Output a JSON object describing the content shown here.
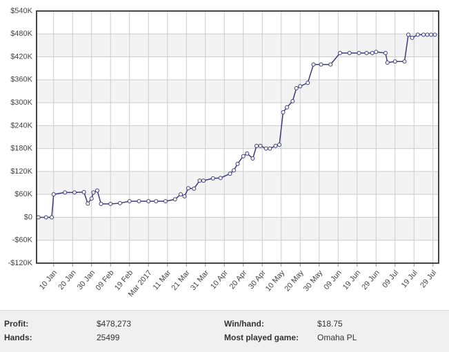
{
  "chart_data": {
    "type": "line",
    "x": [
      "2017-01-02",
      "2017-01-06",
      "2017-01-09",
      "2017-01-10",
      "2017-01-16",
      "2017-01-21",
      "2017-01-26",
      "2017-01-28",
      "2017-01-30",
      "2017-01-31",
      "2017-02-02",
      "2017-02-04",
      "2017-02-09",
      "2017-02-14",
      "2017-02-19",
      "2017-02-24",
      "2017-03-01",
      "2017-03-05",
      "2017-03-10",
      "2017-03-15",
      "2017-03-18",
      "2017-03-20",
      "2017-03-22",
      "2017-03-25",
      "2017-03-28",
      "2017-03-30",
      "2017-04-04",
      "2017-04-08",
      "2017-04-13",
      "2017-04-15",
      "2017-04-17",
      "2017-04-20",
      "2017-04-22",
      "2017-04-25",
      "2017-04-27",
      "2017-04-29",
      "2017-05-02",
      "2017-05-04",
      "2017-05-07",
      "2017-05-09",
      "2017-05-11",
      "2017-05-13",
      "2017-05-16",
      "2017-05-18",
      "2017-05-20",
      "2017-05-24",
      "2017-05-27",
      "2017-05-31",
      "2017-06-05",
      "2017-06-10",
      "2017-06-15",
      "2017-06-20",
      "2017-06-24",
      "2017-06-27",
      "2017-06-29",
      "2017-07-04",
      "2017-07-05",
      "2017-07-09",
      "2017-07-14",
      "2017-07-16",
      "2017-07-18",
      "2017-07-21",
      "2017-07-24",
      "2017-07-26",
      "2017-07-28",
      "2017-07-30"
    ],
    "values": [
      0,
      0,
      0,
      60000,
      65000,
      65000,
      66000,
      36000,
      49000,
      65000,
      70000,
      35000,
      35000,
      37000,
      42000,
      42000,
      42000,
      42000,
      42000,
      47000,
      60000,
      55000,
      76000,
      75000,
      96000,
      96000,
      102000,
      103000,
      114000,
      123000,
      140000,
      160000,
      167000,
      154000,
      187000,
      187000,
      180000,
      180000,
      187000,
      190000,
      275000,
      288000,
      304000,
      338000,
      343000,
      352000,
      400000,
      400000,
      400000,
      430000,
      430000,
      430000,
      430000,
      430000,
      433000,
      430000,
      405000,
      408000,
      408000,
      478000,
      470000,
      478000,
      478000,
      478000,
      478000,
      478000
    ],
    "color": "#3a3a7c",
    "xlim": [
      "2017-01-01",
      "2017-08-01"
    ],
    "xticks": [
      {
        "value": "2017-01-10",
        "label": "10 Jan"
      },
      {
        "value": "2017-01-20",
        "label": "20 Jan"
      },
      {
        "value": "2017-01-30",
        "label": "30 Jan"
      },
      {
        "value": "2017-02-09",
        "label": "09 Feb"
      },
      {
        "value": "2017-02-19",
        "label": "19 Feb"
      },
      {
        "value": "2017-03-01",
        "label": "Mar 2017"
      },
      {
        "value": "2017-03-11",
        "label": "11 Mar"
      },
      {
        "value": "2017-03-21",
        "label": "21 Mar"
      },
      {
        "value": "2017-03-31",
        "label": "31 Mar"
      },
      {
        "value": "2017-04-10",
        "label": "10 Apr"
      },
      {
        "value": "2017-04-20",
        "label": "20 Apr"
      },
      {
        "value": "2017-04-30",
        "label": "30 Apr"
      },
      {
        "value": "2017-05-10",
        "label": "10 May"
      },
      {
        "value": "2017-05-20",
        "label": "20 May"
      },
      {
        "value": "2017-05-30",
        "label": "30 May"
      },
      {
        "value": "2017-06-09",
        "label": "09 Jun"
      },
      {
        "value": "2017-06-19",
        "label": "19 Jun"
      },
      {
        "value": "2017-06-29",
        "label": "29 Jun"
      },
      {
        "value": "2017-07-09",
        "label": "09 Jul"
      },
      {
        "value": "2017-07-19",
        "label": "19 Jul"
      },
      {
        "value": "2017-07-29",
        "label": "29 Jul"
      }
    ],
    "ylim": [
      -120000,
      540000
    ],
    "yticks": [
      {
        "value": -120000,
        "label": "-$120K"
      },
      {
        "value": -60000,
        "label": "-$60K"
      },
      {
        "value": 0,
        "label": "$0"
      },
      {
        "value": 60000,
        "label": "$60K"
      },
      {
        "value": 120000,
        "label": "$120K"
      },
      {
        "value": 180000,
        "label": "$180K"
      },
      {
        "value": 240000,
        "label": "$240K"
      },
      {
        "value": 300000,
        "label": "$300K"
      },
      {
        "value": 360000,
        "label": "$360K"
      },
      {
        "value": 420000,
        "label": "$420K"
      },
      {
        "value": 480000,
        "label": "$480K"
      },
      {
        "value": 540000,
        "label": "$540K"
      }
    ],
    "grid": true
  },
  "stats": [
    {
      "label": "Profit:",
      "value": "$478,273"
    },
    {
      "label": "Win/hand:",
      "value": "$18.75"
    },
    {
      "label": "Hands:",
      "value": "25499"
    },
    {
      "label": "Most played game:",
      "value": "Omaha PL"
    }
  ]
}
